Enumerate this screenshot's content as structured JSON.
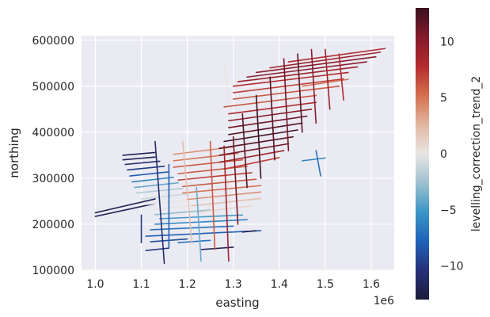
{
  "chart_data": {
    "type": "scatter",
    "xlabel": "easting",
    "ylabel": "northing",
    "x_offset_label": "1e6",
    "xlim": [
      0.97,
      1.65
    ],
    "ylim": [
      100000,
      610000
    ],
    "x_ticks": [
      1.0,
      1.1,
      1.2,
      1.3,
      1.4,
      1.5,
      1.6
    ],
    "x_tick_labels": [
      "1.0",
      "1.1",
      "1.2",
      "1.3",
      "1.4",
      "1.5",
      "1.6"
    ],
    "y_ticks": [
      100000,
      200000,
      300000,
      400000,
      500000,
      600000
    ],
    "y_tick_labels": [
      "100000",
      "200000",
      "300000",
      "400000",
      "500000",
      "600000"
    ],
    "grid": true,
    "colorbar": {
      "label": "levelling_correction_trend_2",
      "range": [
        -13,
        13
      ],
      "ticks": [
        -10,
        -5,
        0,
        5,
        10
      ],
      "tick_labels": [
        "−10",
        "−5",
        "0",
        "5",
        "10"
      ],
      "colormap": [
        "#1c1c3a",
        "#24317a",
        "#1f63b8",
        "#3a95c7",
        "#9fc1cf",
        "#e8e6e4",
        "#e2b6a0",
        "#d4704e",
        "#b42b2e",
        "#841a2c",
        "#3b0f1e"
      ]
    },
    "flight_lines": [
      {
        "x": [
          1.0,
          1.13
        ],
        "y": [
          217000,
          245000
        ],
        "value": -12
      },
      {
        "x": [
          1.0,
          1.13
        ],
        "y": [
          225000,
          255000
        ],
        "value": -12
      },
      {
        "x": [
          1.06,
          1.13
        ],
        "y": [
          350000,
          356000
        ],
        "value": -12
      },
      {
        "x": [
          1.06,
          1.13
        ],
        "y": [
          340000,
          346000
        ],
        "value": -12
      },
      {
        "x": [
          1.065,
          1.14
        ],
        "y": [
          330000,
          337000
        ],
        "value": -11
      },
      {
        "x": [
          1.07,
          1.15
        ],
        "y": [
          318000,
          326000
        ],
        "value": -10
      },
      {
        "x": [
          1.075,
          1.16
        ],
        "y": [
          305000,
          314000
        ],
        "value": -8
      },
      {
        "x": [
          1.08,
          1.17
        ],
        "y": [
          292000,
          302000
        ],
        "value": -6
      },
      {
        "x": [
          1.085,
          1.18
        ],
        "y": [
          280000,
          290000
        ],
        "value": -4
      },
      {
        "x": [
          1.09,
          1.19
        ],
        "y": [
          268000,
          278000
        ],
        "value": -2
      },
      {
        "x": [
          1.1,
          1.2
        ],
        "y": [
          255000,
          266000
        ],
        "value": -1
      },
      {
        "x": [
          1.11,
          1.21
        ],
        "y": [
          243000,
          254000
        ],
        "value": 0
      },
      {
        "x": [
          1.12,
          1.22
        ],
        "y": [
          231000,
          242000
        ],
        "value": 0
      },
      {
        "x": [
          1.13,
          1.25
        ],
        "y": [
          221000,
          231000
        ],
        "value": -3
      },
      {
        "x": [
          1.14,
          1.32
        ],
        "y": [
          212000,
          220000
        ],
        "value": -5
      },
      {
        "x": [
          1.13,
          1.33
        ],
        "y": [
          200000,
          210000
        ],
        "value": -6
      },
      {
        "x": [
          1.12,
          1.3
        ],
        "y": [
          188000,
          196000
        ],
        "value": -7
      },
      {
        "x": [
          1.11,
          1.36
        ],
        "y": [
          174000,
          186000
        ],
        "value": -8
      },
      {
        "x": [
          1.12,
          1.2
        ],
        "y": [
          162000,
          168000
        ],
        "value": -9
      },
      {
        "x": [
          1.18,
          1.25
        ],
        "y": [
          160000,
          165000
        ],
        "value": -7
      },
      {
        "x": [
          1.11,
          1.16
        ],
        "y": [
          143000,
          148000
        ],
        "value": -10
      },
      {
        "x": [
          1.23,
          1.3
        ],
        "y": [
          145000,
          150000
        ],
        "value": -12
      },
      {
        "x": [
          1.32,
          1.35
        ],
        "y": [
          183000,
          186000
        ],
        "value": -12
      },
      {
        "x": [
          1.45,
          1.5
        ],
        "y": [
          338000,
          344000
        ],
        "value": -6
      },
      {
        "x": [
          1.17,
          1.3
        ],
        "y": [
          352000,
          368000
        ],
        "value": 4
      },
      {
        "x": [
          1.17,
          1.31
        ],
        "y": [
          338000,
          354000
        ],
        "value": 5
      },
      {
        "x": [
          1.17,
          1.32
        ],
        "y": [
          324000,
          340000
        ],
        "value": 6
      },
      {
        "x": [
          1.18,
          1.33
        ],
        "y": [
          310000,
          326000
        ],
        "value": 6
      },
      {
        "x": [
          1.18,
          1.34
        ],
        "y": [
          296000,
          312000
        ],
        "value": 7
      },
      {
        "x": [
          1.19,
          1.35
        ],
        "y": [
          282000,
          298000
        ],
        "value": 6
      },
      {
        "x": [
          1.19,
          1.36
        ],
        "y": [
          268000,
          284000
        ],
        "value": 5
      },
      {
        "x": [
          1.2,
          1.36
        ],
        "y": [
          254000,
          270000
        ],
        "value": 4
      },
      {
        "x": [
          1.21,
          1.36
        ],
        "y": [
          240000,
          256000
        ],
        "value": 2
      },
      {
        "x": [
          1.22,
          1.34
        ],
        "y": [
          226000,
          240000
        ],
        "value": 1
      },
      {
        "x": [
          1.28,
          1.48
        ],
        "y": [
          455000,
          480000
        ],
        "value": 6
      },
      {
        "x": [
          1.29,
          1.48
        ],
        "y": [
          440000,
          465000
        ],
        "value": 8
      },
      {
        "x": [
          1.29,
          1.47
        ],
        "y": [
          425000,
          450000
        ],
        "value": 10
      },
      {
        "x": [
          1.29,
          1.46
        ],
        "y": [
          410000,
          435000
        ],
        "value": 11
      },
      {
        "x": [
          1.29,
          1.45
        ],
        "y": [
          395000,
          420000
        ],
        "value": 12
      },
      {
        "x": [
          1.28,
          1.44
        ],
        "y": [
          380000,
          405000
        ],
        "value": 13
      },
      {
        "x": [
          1.27,
          1.43
        ],
        "y": [
          365000,
          390000
        ],
        "value": 12
      },
      {
        "x": [
          1.27,
          1.42
        ],
        "y": [
          350000,
          375000
        ],
        "value": 11
      },
      {
        "x": [
          1.27,
          1.41
        ],
        "y": [
          335000,
          360000
        ],
        "value": 9
      },
      {
        "x": [
          1.28,
          1.4
        ],
        "y": [
          320000,
          345000
        ],
        "value": 7
      },
      {
        "x": [
          1.3,
          1.55
        ],
        "y": [
          500000,
          530000
        ],
        "value": 8
      },
      {
        "x": [
          1.31,
          1.57
        ],
        "y": [
          510000,
          542000
        ],
        "value": 9
      },
      {
        "x": [
          1.33,
          1.59
        ],
        "y": [
          520000,
          553000
        ],
        "value": 10
      },
      {
        "x": [
          1.35,
          1.61
        ],
        "y": [
          530000,
          564000
        ],
        "value": 10
      },
      {
        "x": [
          1.38,
          1.62
        ],
        "y": [
          540000,
          574000
        ],
        "value": 9
      },
      {
        "x": [
          1.42,
          1.63
        ],
        "y": [
          553000,
          582000
        ],
        "value": 8
      },
      {
        "x": [
          1.3,
          1.54
        ],
        "y": [
          486000,
          516000
        ],
        "value": 7
      },
      {
        "x": [
          1.3,
          1.53
        ],
        "y": [
          472000,
          500000
        ],
        "value": 6
      },
      {
        "x": [
          1.45,
          1.55
        ],
        "y": [
          500000,
          515000
        ],
        "value": 5
      },
      {
        "x": [
          1.13,
          1.15
        ],
        "y": [
          380000,
          115000
        ],
        "value": -11
      },
      {
        "x": [
          1.1,
          1.1
        ],
        "y": [
          220000,
          160000
        ],
        "value": -10
      },
      {
        "x": [
          1.16,
          1.16
        ],
        "y": [
          330000,
          150000
        ],
        "value": -8
      },
      {
        "x": [
          1.19,
          1.21
        ],
        "y": [
          380000,
          160000
        ],
        "value": 2
      },
      {
        "x": [
          1.22,
          1.23
        ],
        "y": [
          280000,
          120000
        ],
        "value": -4
      },
      {
        "x": [
          1.25,
          1.26
        ],
        "y": [
          380000,
          145000
        ],
        "value": 6
      },
      {
        "x": [
          1.28,
          1.29
        ],
        "y": [
          370000,
          120000
        ],
        "value": 9
      },
      {
        "x": [
          1.3,
          1.31
        ],
        "y": [
          390000,
          200000
        ],
        "value": 11
      },
      {
        "x": [
          1.32,
          1.33
        ],
        "y": [
          440000,
          280000
        ],
        "value": 12
      },
      {
        "x": [
          1.35,
          1.36
        ],
        "y": [
          480000,
          300000
        ],
        "value": 13
      },
      {
        "x": [
          1.38,
          1.39
        ],
        "y": [
          520000,
          340000
        ],
        "value": 12
      },
      {
        "x": [
          1.41,
          1.42
        ],
        "y": [
          560000,
          360000
        ],
        "value": 11
      },
      {
        "x": [
          1.44,
          1.45
        ],
        "y": [
          570000,
          400000
        ],
        "value": 12
      },
      {
        "x": [
          1.47,
          1.48
        ],
        "y": [
          580000,
          420000
        ],
        "value": 10
      },
      {
        "x": [
          1.5,
          1.51
        ],
        "y": [
          580000,
          450000
        ],
        "value": 9
      },
      {
        "x": [
          1.53,
          1.54
        ],
        "y": [
          570000,
          470000
        ],
        "value": 8
      },
      {
        "x": [
          1.28,
          1.29
        ],
        "y": [
          555000,
          460000
        ],
        "value": 0
      },
      {
        "x": [
          1.48,
          1.49
        ],
        "y": [
          360000,
          305000
        ],
        "value": -7
      }
    ]
  }
}
